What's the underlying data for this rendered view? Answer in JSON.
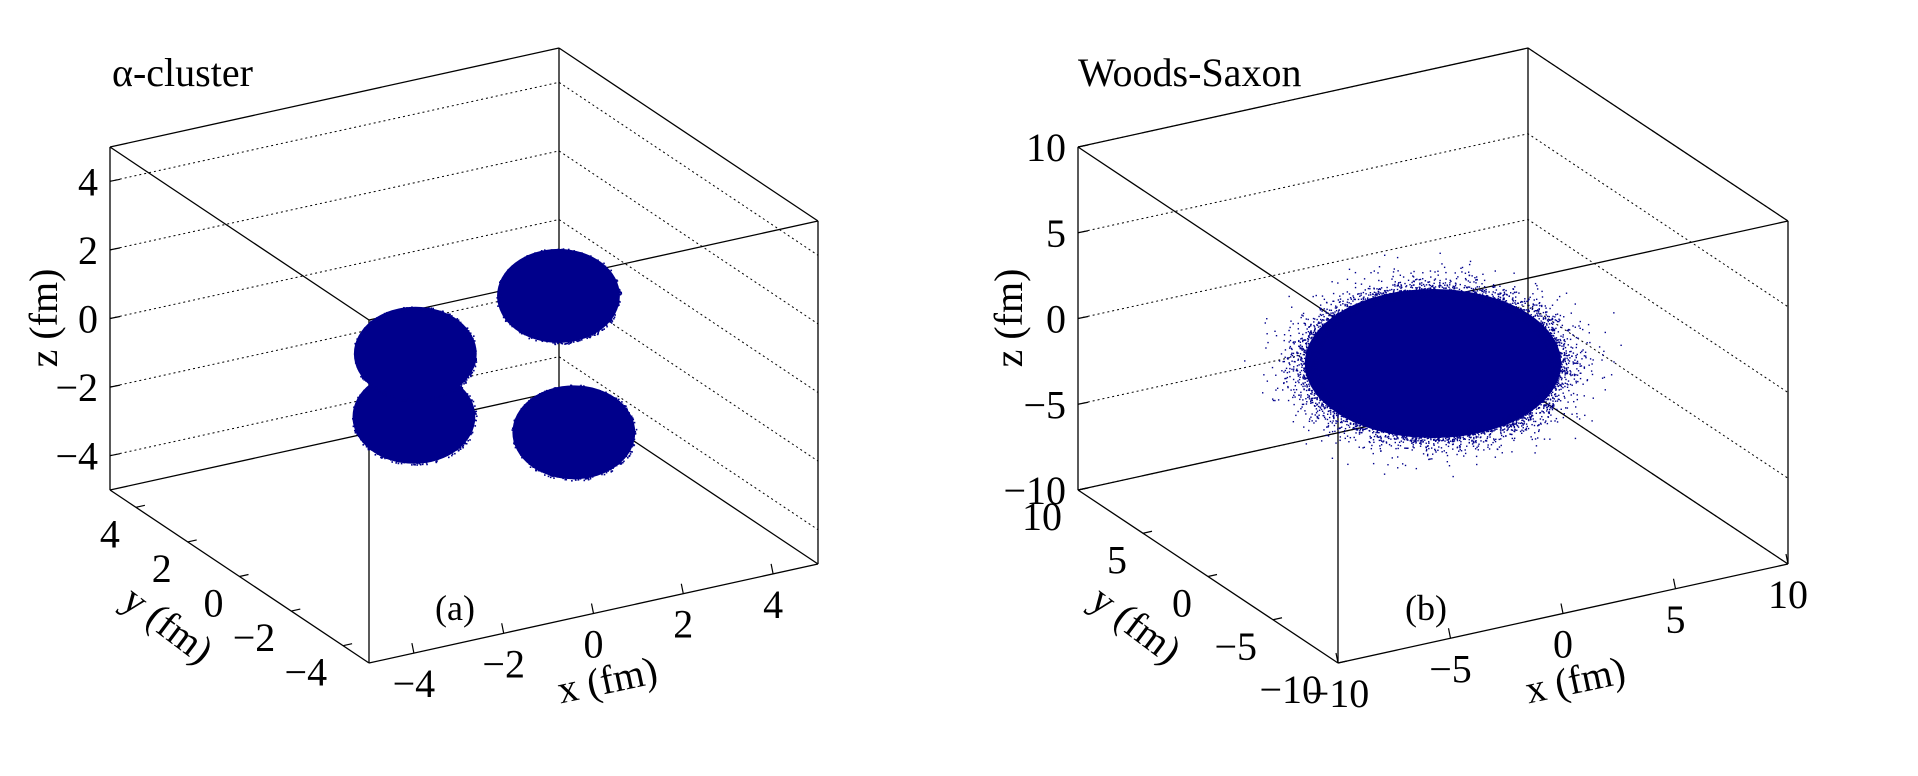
{
  "colors": {
    "points": "#00008b",
    "frame": "#000000"
  },
  "chart_data": [
    {
      "type": "scatter",
      "title": "α-cluster",
      "panel_label": "(a)",
      "xlabel": "x (fm)",
      "ylabel": "y (fm)",
      "zlabel": "z (fm)",
      "xlim": [
        -5,
        5
      ],
      "ylim": [
        -5,
        5
      ],
      "zlim": [
        -5,
        5
      ],
      "xticks": [
        -4,
        -2,
        0,
        2,
        4
      ],
      "yticks": [
        -4,
        -2,
        0,
        2,
        4
      ],
      "zticks": [
        -4,
        -2,
        0,
        2,
        4
      ],
      "xtick_labels": [
        "−4",
        "−2",
        "0",
        "2",
        "4"
      ],
      "ytick_labels": [
        "−4",
        "−2",
        "0",
        "2",
        "4"
      ],
      "ztick_labels": [
        "−4",
        "−2",
        "0",
        "2",
        "4"
      ],
      "grid": true,
      "clusters": [
        {
          "center": [
            1.7,
            -0.7,
            1.6
          ],
          "radius": 1.5
        },
        {
          "center": [
            -1.2,
            -0.2,
            0.5
          ],
          "radius": 1.5
        },
        {
          "center": [
            -1.0,
            0.2,
            -1.6
          ],
          "radius": 1.5
        },
        {
          "center": [
            0.6,
            -3.2,
            -0.8
          ],
          "radius": 1.5
        }
      ]
    },
    {
      "type": "scatter",
      "title": "Woods-Saxon",
      "panel_label": "(b)",
      "xlabel": "x (fm)",
      "ylabel": "y (fm)",
      "zlabel": "z (fm)",
      "xlim": [
        -10,
        10
      ],
      "ylim": [
        -10,
        10
      ],
      "zlim": [
        -10,
        10
      ],
      "xticks": [
        -10,
        -5,
        0,
        5,
        10
      ],
      "yticks": [
        -10,
        -5,
        0,
        5,
        10
      ],
      "zticks": [
        -10,
        -5,
        0,
        5,
        10
      ],
      "xtick_labels": [
        "−10",
        "−5",
        "0",
        "5",
        "10"
      ],
      "ytick_labels": [
        "−10",
        "−5",
        "0",
        "5",
        "10"
      ],
      "ztick_labels": [
        "−10",
        "−5",
        "0",
        "5",
        "10"
      ],
      "grid": true,
      "distribution": {
        "center": [
          0,
          0,
          0
        ],
        "radius": 5.3,
        "diffuseness": 0.55
      }
    }
  ]
}
